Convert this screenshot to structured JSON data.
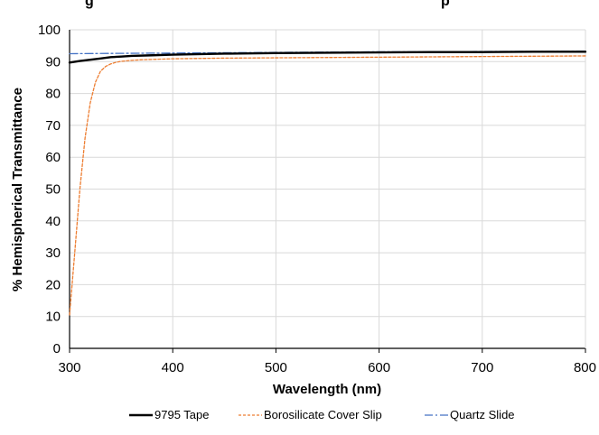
{
  "chart_data": {
    "type": "line",
    "title": "",
    "title_partial": "…g… …p…",
    "xlabel": "Wavelength (nm)",
    "ylabel": "% Hemispherical Transmittance",
    "xlim": [
      300,
      800
    ],
    "ylim": [
      0,
      100
    ],
    "x_ticks": [
      "300",
      "400",
      "500",
      "600",
      "700",
      "800"
    ],
    "y_ticks": [
      "0",
      "10",
      "20",
      "30",
      "40",
      "50",
      "60",
      "70",
      "80",
      "90",
      "100"
    ],
    "grid": true,
    "legend_position": "bottom",
    "series": [
      {
        "name": "9795 Tape",
        "color": "#000000",
        "style": "solid",
        "x": [
          300,
          310,
          320,
          330,
          340,
          350,
          360,
          380,
          400,
          450,
          500,
          550,
          600,
          650,
          700,
          750,
          800
        ],
        "y": [
          89.7,
          90.2,
          90.6,
          91.0,
          91.4,
          91.6,
          91.8,
          92.0,
          92.2,
          92.5,
          92.7,
          92.8,
          92.9,
          93.0,
          93.0,
          93.1,
          93.1
        ]
      },
      {
        "name": "Borosilicate Cover Slip",
        "color": "#ED7D31",
        "style": "dashed",
        "x": [
          300,
          305,
          310,
          315,
          320,
          325,
          330,
          335,
          340,
          345,
          350,
          360,
          370,
          380,
          400,
          450,
          500,
          600,
          700,
          800
        ],
        "y": [
          10.5,
          30,
          50,
          66,
          77,
          83.5,
          87,
          88.5,
          89.3,
          89.8,
          90.1,
          90.4,
          90.6,
          90.7,
          90.9,
          91.1,
          91.2,
          91.4,
          91.6,
          91.8
        ]
      },
      {
        "name": "Quartz Slide",
        "color": "#4472C4",
        "style": "dashdot",
        "x": [
          300,
          350,
          400,
          450,
          500,
          550,
          600,
          650,
          700,
          750,
          800
        ],
        "y": [
          92.5,
          92.6,
          92.7,
          92.8,
          92.9,
          93.0,
          93.1,
          93.1,
          93.2,
          93.2,
          93.3
        ]
      }
    ]
  }
}
